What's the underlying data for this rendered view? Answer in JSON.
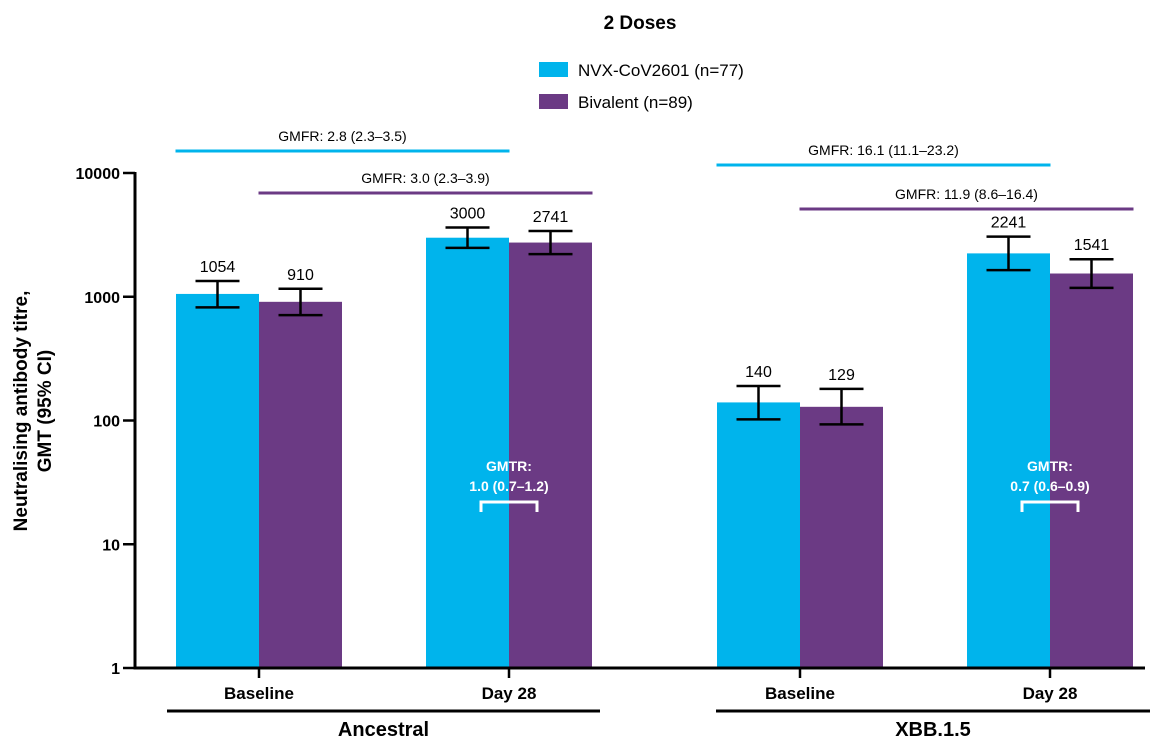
{
  "chart_data": {
    "type": "bar",
    "title": "2 Doses",
    "ylabel_lines": [
      "Neutralising antibody titre,",
      "GMT (95% CI)"
    ],
    "yscale": "log",
    "ylim": [
      1,
      10000
    ],
    "yticks": [
      1,
      10,
      100,
      1000,
      10000
    ],
    "ytick_labels": [
      "1",
      "10",
      "100",
      "1000",
      "10000"
    ],
    "groups": [
      {
        "label": "Ancestral",
        "categories": [
          "Baseline",
          "Day 28"
        ]
      },
      {
        "label": "XBB.1.5",
        "categories": [
          "Baseline",
          "Day 28"
        ]
      }
    ],
    "categories": [
      "Baseline",
      "Day 28",
      "Baseline",
      "Day 28"
    ],
    "series": [
      {
        "name": "NVX-CoV2601 (n=77)",
        "color": "#00b4ec",
        "values": [
          1054,
          3000,
          140,
          2241
        ],
        "labels": [
          "1054",
          "3000",
          "140",
          "2241"
        ],
        "ci_low": [
          820,
          2480,
          102,
          1640
        ],
        "ci_high": [
          1340,
          3630,
          190,
          3060
        ]
      },
      {
        "name": "Bivalent (n=89)",
        "color": "#6b3a84",
        "values": [
          910,
          2741,
          129,
          1541
        ],
        "labels": [
          "910",
          "2741",
          "129",
          "1541"
        ],
        "ci_low": [
          710,
          2210,
          93,
          1180
        ],
        "ci_high": [
          1160,
          3400,
          180,
          2010
        ]
      }
    ],
    "gmfr": [
      {
        "text": "GMFR: 2.8 (2.3–3.5)",
        "series": 0,
        "group": 0
      },
      {
        "text": "GMFR: 3.0 (2.3–3.9)",
        "series": 1,
        "group": 0
      },
      {
        "text": "GMFR: 16.1 (11.1–23.2)",
        "series": 0,
        "group": 1
      },
      {
        "text": "GMFR: 11.9 (8.6–16.4)",
        "series": 1,
        "group": 1
      }
    ],
    "gmtr": [
      {
        "line1": "GMTR:",
        "line2": "1.0 (0.7–1.2)",
        "group": 0
      },
      {
        "line1": "GMTR:",
        "line2": "0.7 (0.6–0.9)",
        "group": 1
      }
    ],
    "legend_position": "top-center",
    "grid": false
  }
}
